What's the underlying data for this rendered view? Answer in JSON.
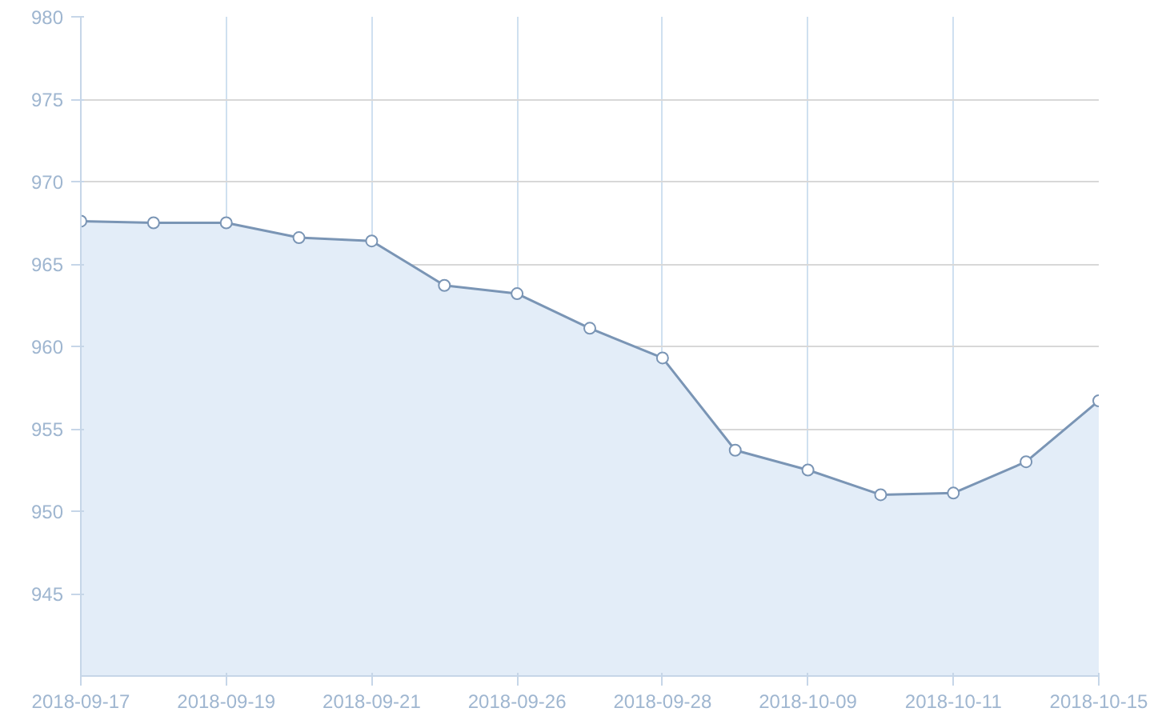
{
  "chart_data": {
    "type": "area",
    "categories": [
      "2018-09-17",
      null,
      "2018-09-19",
      null,
      "2018-09-21",
      null,
      "2018-09-26",
      null,
      "2018-09-28",
      null,
      "2018-10-09",
      null,
      "2018-10-11",
      null,
      "2018-10-15"
    ],
    "series": [
      {
        "color": "#7a95b5",
        "values": [
          967.6,
          967.5,
          967.5,
          966.6,
          966.4,
          963.7,
          963.2,
          961.1,
          959.3,
          953.7,
          952.5,
          951.0,
          951.1,
          953.0,
          956.7
        ]
      }
    ],
    "ylim": [
      940,
      980
    ],
    "yticks": [
      945,
      950,
      955,
      960,
      965,
      970,
      975,
      980
    ],
    "grid": true,
    "marker": "circle",
    "line_style": "solid"
  }
}
